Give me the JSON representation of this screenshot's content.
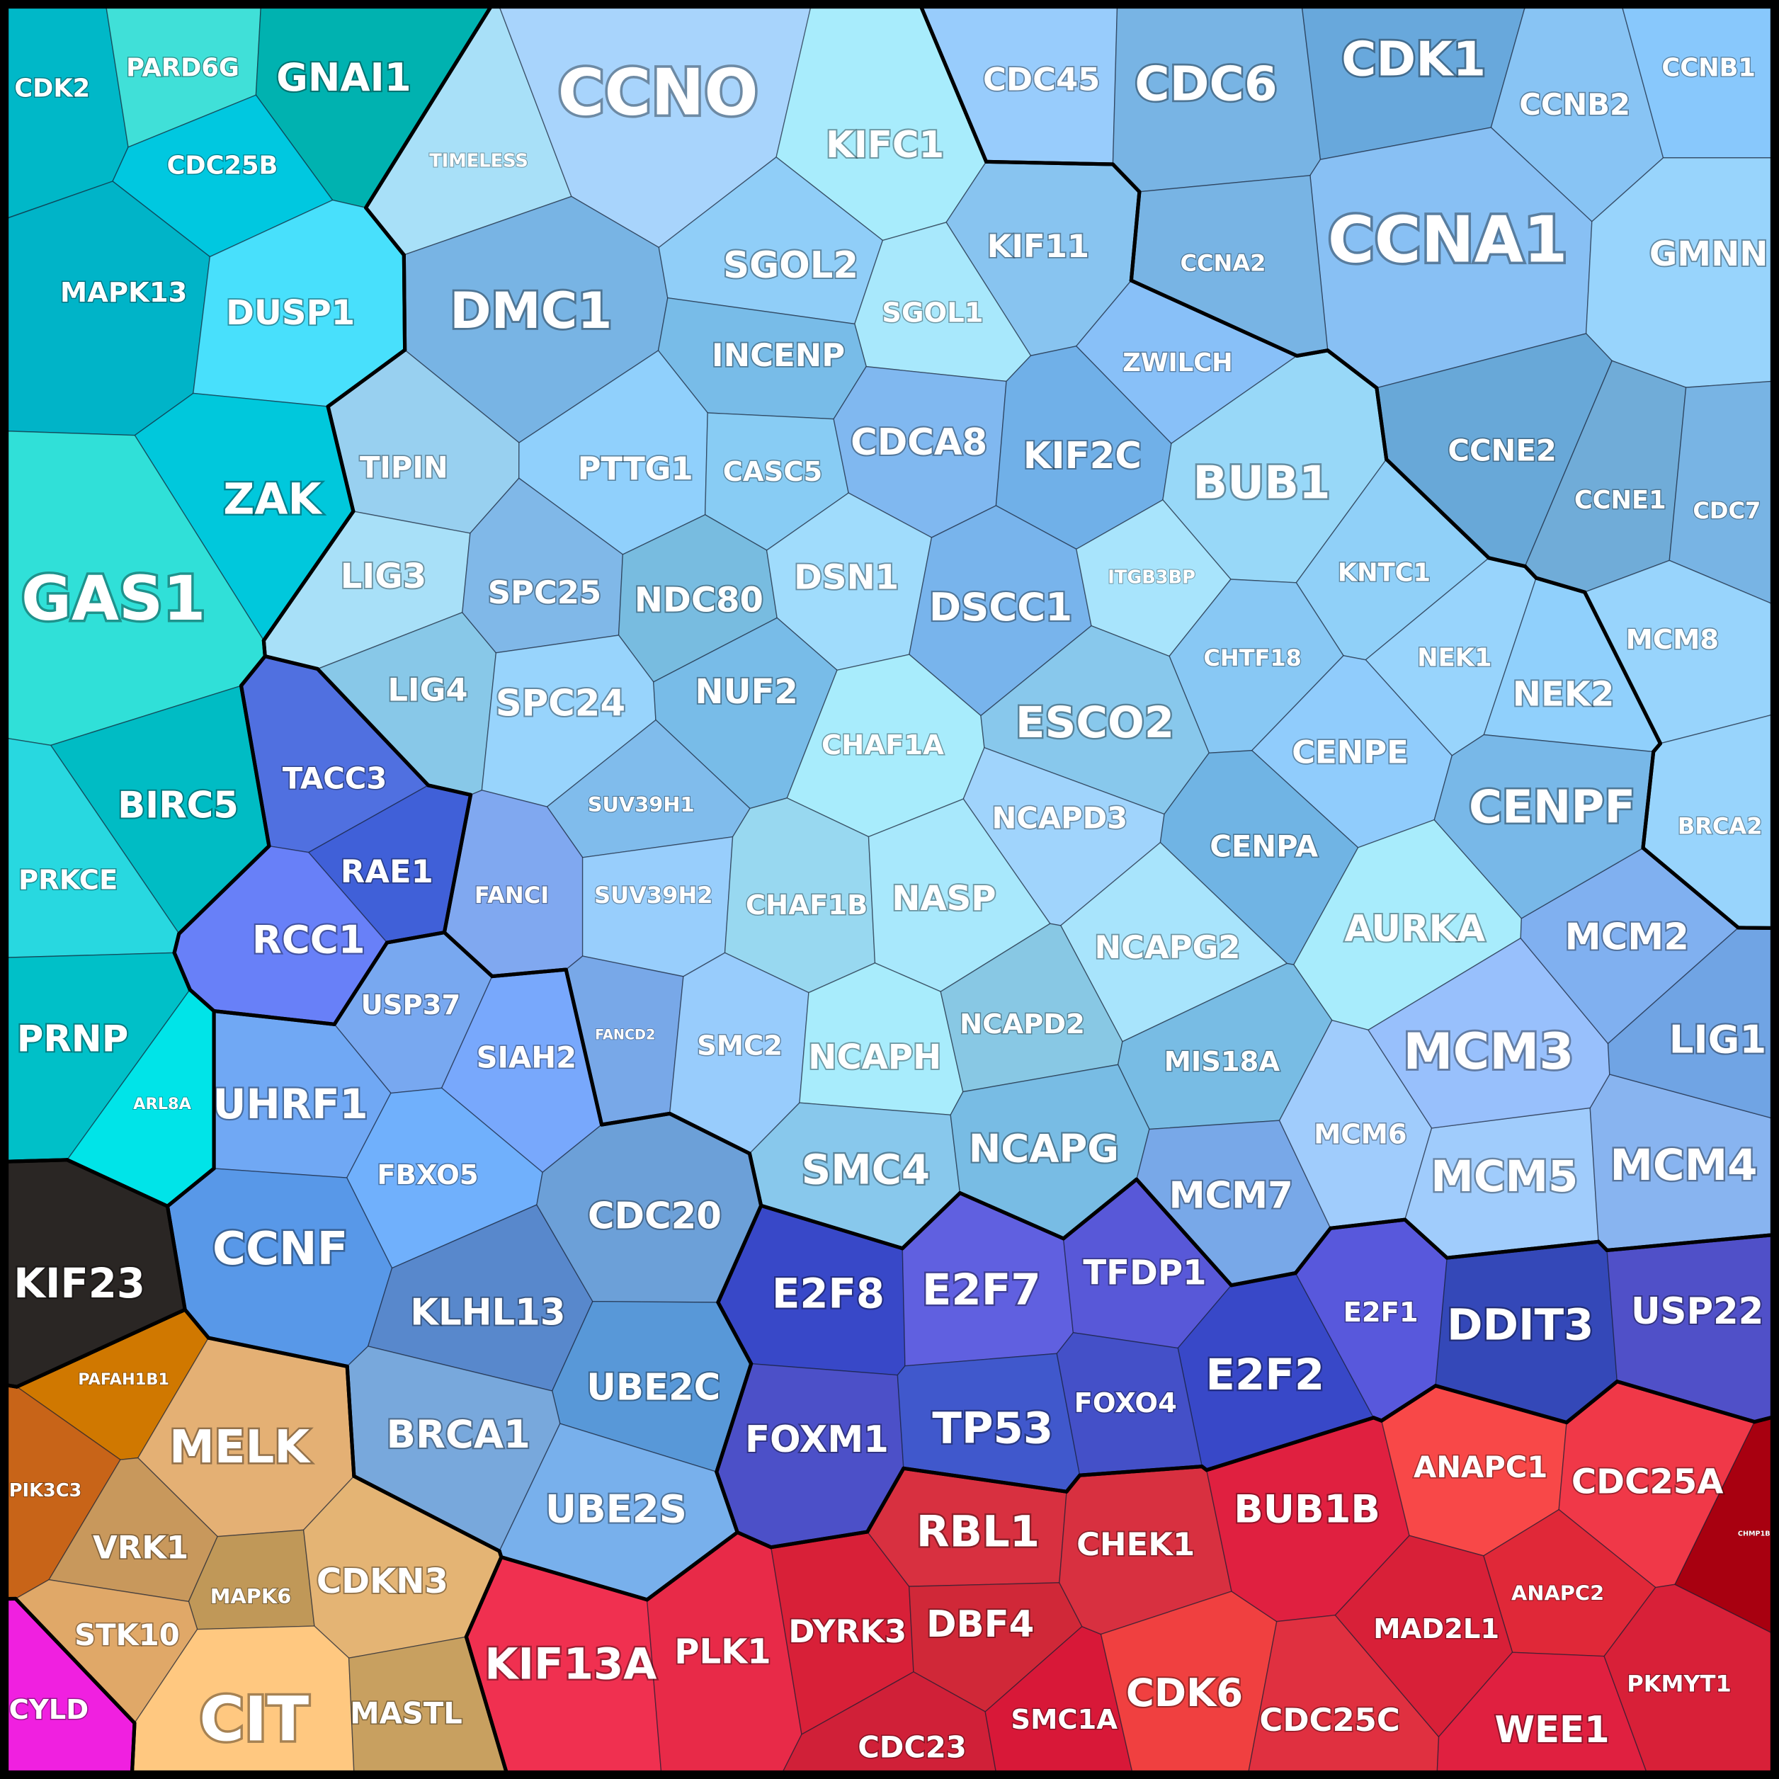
{
  "groups": [
    {
      "cells": [
        {
          "label": "CDK2",
          "color": "#00b8c8"
        },
        {
          "label": "PARD6G",
          "color": "#40e0d8"
        },
        {
          "label": "GNAI1",
          "color": "#00b2b0"
        },
        {
          "label": "CDC25B",
          "color": "#00c8e0"
        },
        {
          "label": "MAPK13",
          "color": "#00b4c8"
        },
        {
          "label": "DUSP1",
          "color": "#48e0fc"
        },
        {
          "label": "ZAK",
          "color": "#00c8dc"
        },
        {
          "label": "GAS1",
          "color": "#30e0d8"
        },
        {
          "label": "BIRC5",
          "color": "#00bcc4"
        },
        {
          "label": "PRKCE",
          "color": "#28d8e0"
        },
        {
          "label": "PRNP",
          "color": "#00c0c8"
        },
        {
          "label": "ARL8A",
          "color": "#00e4e8"
        }
      ]
    },
    {
      "cells": [
        {
          "label": "TIMELESS",
          "color": "#a8e0f8"
        },
        {
          "label": "CCNO",
          "color": "#a8d4fc"
        },
        {
          "label": "DMC1",
          "color": "#78b4e4"
        },
        {
          "label": "TIPIN",
          "color": "#98d0f0"
        },
        {
          "label": "LIG3",
          "color": "#a8e0f8"
        },
        {
          "label": "LIG4",
          "color": "#88c8e8"
        },
        {
          "label": "KIFC1",
          "color": "#a8ecfc"
        },
        {
          "label": "SGOL2",
          "color": "#90cef8"
        },
        {
          "label": "KIF11",
          "color": "#88c4f0"
        },
        {
          "label": "SGOL1",
          "color": "#a8e8fc"
        },
        {
          "label": "INCENP",
          "color": "#78bce8"
        },
        {
          "label": "ZWILCH",
          "color": "#88c0f8"
        },
        {
          "label": "PTTG1",
          "color": "#90d0fc"
        },
        {
          "label": "CASC5",
          "color": "#88ccf4"
        },
        {
          "label": "CDCA8",
          "color": "#80b8f0"
        },
        {
          "label": "KIF2C",
          "color": "#70b0e8"
        },
        {
          "label": "BUB1",
          "color": "#98d8f8"
        },
        {
          "label": "SPC25",
          "color": "#80b8e8"
        },
        {
          "label": "NDC80",
          "color": "#78bce0"
        },
        {
          "label": "DSN1",
          "color": "#a0dcfc"
        },
        {
          "label": "DSCC1",
          "color": "#78b4ec"
        },
        {
          "label": "ITGB3BP",
          "color": "#a8e4fc"
        },
        {
          "label": "KNTC1",
          "color": "#90d0f8"
        },
        {
          "label": "CHTF18",
          "color": "#88c8f4"
        },
        {
          "label": "NEK1",
          "color": "#98d4fc"
        },
        {
          "label": "SPC24",
          "color": "#98d4fc"
        },
        {
          "label": "NUF2",
          "color": "#78bce8"
        },
        {
          "label": "CHAF1A",
          "color": "#a8ecfc"
        },
        {
          "label": "ESCO2",
          "color": "#88c8ec"
        },
        {
          "label": "CENPE",
          "color": "#90ccfc"
        },
        {
          "label": "SUV39H1",
          "color": "#80bcec"
        },
        {
          "label": "NCAPD3",
          "color": "#a0d4fc"
        },
        {
          "label": "CENPA",
          "color": "#70b4e4"
        },
        {
          "label": "FANCI",
          "color": "#80a8f0"
        },
        {
          "label": "SUV39H2",
          "color": "#98cefc"
        },
        {
          "label": "CHAF1B",
          "color": "#98d8f0"
        },
        {
          "label": "NASP",
          "color": "#a8e8fc"
        },
        {
          "label": "AURKA",
          "color": "#a8ecfc"
        },
        {
          "label": "NCAPG2",
          "color": "#a8e4fc"
        },
        {
          "label": "FANCD2",
          "color": "#78a8e8"
        },
        {
          "label": "SMC2",
          "color": "#98ccfc"
        },
        {
          "label": "NCAPH",
          "color": "#a8ecfc"
        },
        {
          "label": "NCAPD2",
          "color": "#88c8e4"
        },
        {
          "label": "MIS18A",
          "color": "#78bce4"
        },
        {
          "label": "SMC4",
          "color": "#88c8ec"
        },
        {
          "label": "NCAPG",
          "color": "#78bce4"
        },
        {
          "label": "MCM7",
          "color": "#78a8e8"
        },
        {
          "label": "MCM6",
          "color": "#a0ccfc"
        },
        {
          "label": "MCM5",
          "color": "#a0ccfc"
        },
        {
          "label": "MCM4",
          "color": "#88b4f0"
        },
        {
          "label": "MCM3",
          "color": "#98c0fc"
        },
        {
          "label": "MCM2",
          "color": "#80b0f0"
        },
        {
          "label": "LIG1",
          "color": "#70a4e4"
        },
        {
          "label": "NEK2",
          "color": "#90d0fc"
        },
        {
          "label": "CENPF",
          "color": "#78b8e8"
        }
      ]
    },
    {
      "cells": [
        {
          "label": "CDC45",
          "color": "#98ccfc"
        },
        {
          "label": "CDC6",
          "color": "#78b4e4"
        },
        {
          "label": "CDK1",
          "color": "#68a8dc"
        },
        {
          "label": "CCNB2",
          "color": "#88c4f4"
        },
        {
          "label": "CCNB1",
          "color": "#88c8fc"
        },
        {
          "label": "CCNA1",
          "color": "#88c0f4"
        },
        {
          "label": "CCNA2",
          "color": "#78b4e4"
        },
        {
          "label": "GMNN",
          "color": "#98d4fc"
        },
        {
          "label": "CCNE2",
          "color": "#68a8d8"
        },
        {
          "label": "CCNE1",
          "color": "#70acd8"
        },
        {
          "label": "CDC7",
          "color": "#78b4e4"
        },
        {
          "label": "MCM8",
          "color": "#98d4fc"
        },
        {
          "label": "BRCA2",
          "color": "#98d4fc"
        }
      ]
    },
    {
      "cells": [
        {
          "label": "TACC3",
          "color": "#5070e0"
        },
        {
          "label": "RAE1",
          "color": "#4060d8"
        },
        {
          "label": "RCC1",
          "color": "#6880f8"
        }
      ]
    },
    {
      "cells": [
        {
          "label": "USP37",
          "color": "#78a8f0"
        },
        {
          "label": "SIAH2",
          "color": "#78a8fc"
        },
        {
          "label": "UHRF1",
          "color": "#70a8f4"
        },
        {
          "label": "FBXO5",
          "color": "#70b0fc"
        },
        {
          "label": "CCNF",
          "color": "#5898e8"
        },
        {
          "label": "KLHL13",
          "color": "#5888cc"
        },
        {
          "label": "CDC20",
          "color": "#6ca0d8"
        },
        {
          "label": "UBE2C",
          "color": "#5898d8"
        },
        {
          "label": "BRCA1",
          "color": "#78a8dc"
        },
        {
          "label": "UBE2S",
          "color": "#78b0ec"
        }
      ]
    },
    {
      "cells": [
        {
          "label": "E2F8",
          "color": "#3848c8"
        },
        {
          "label": "E2F7",
          "color": "#6060e0"
        },
        {
          "label": "TFDP1",
          "color": "#5858d8"
        },
        {
          "label": "E2F2",
          "color": "#3848c8"
        },
        {
          "label": "E2F1",
          "color": "#5858dc"
        },
        {
          "label": "DDIT3",
          "color": "#3448b8"
        },
        {
          "label": "USP22",
          "color": "#5050c8"
        },
        {
          "label": "FOXM1",
          "color": "#4c50c8"
        },
        {
          "label": "TP53",
          "color": "#4058cc"
        },
        {
          "label": "FOXO4",
          "color": "#4450c8"
        }
      ]
    },
    {
      "cells": [
        {
          "label": "KIF13A",
          "color": "#f03050"
        },
        {
          "label": "PLK1",
          "color": "#e82a48"
        },
        {
          "label": "DYRK3",
          "color": "#d82038"
        },
        {
          "label": "RBL1",
          "color": "#d83040"
        },
        {
          "label": "DBF4",
          "color": "#d02838"
        },
        {
          "label": "CDC23",
          "color": "#d02038"
        },
        {
          "label": "SMC1A",
          "color": "#d81838"
        },
        {
          "label": "CHEK1",
          "color": "#d83040"
        },
        {
          "label": "CDK6",
          "color": "#f04040"
        },
        {
          "label": "BUB1B",
          "color": "#e02040"
        },
        {
          "label": "CDC25C",
          "color": "#e03040"
        },
        {
          "label": "ANAPC1",
          "color": "#f84848"
        },
        {
          "label": "CDC25A",
          "color": "#f03848"
        },
        {
          "label": "ANAPC2",
          "color": "#e02838"
        },
        {
          "label": "MAD2L1",
          "color": "#d82038"
        },
        {
          "label": "WEE1",
          "color": "#e02040"
        },
        {
          "label": "PKMYT1",
          "color": "#d82038"
        },
        {
          "label": "CHMP1B",
          "color": "#a80010"
        }
      ]
    },
    {
      "cells": [
        {
          "label": "KIF23",
          "color": "#2a2624"
        }
      ]
    },
    {
      "cells": [
        {
          "label": "PAFAH1B1",
          "color": "#d07800"
        },
        {
          "label": "PIK3C3",
          "color": "#c86418"
        },
        {
          "label": "MELK",
          "color": "#e4b074"
        },
        {
          "label": "VRK1",
          "color": "#c8985c"
        },
        {
          "label": "MAPK6",
          "color": "#c09858"
        },
        {
          "label": "STK10",
          "color": "#e0a868"
        },
        {
          "label": "CDKN3",
          "color": "#e4b474"
        },
        {
          "label": "CIT",
          "color": "#ffc880"
        },
        {
          "label": "MASTL",
          "color": "#c8a060"
        }
      ]
    },
    {
      "cells": [
        {
          "label": "CYLD",
          "color": "#f020e0"
        }
      ]
    }
  ]
}
